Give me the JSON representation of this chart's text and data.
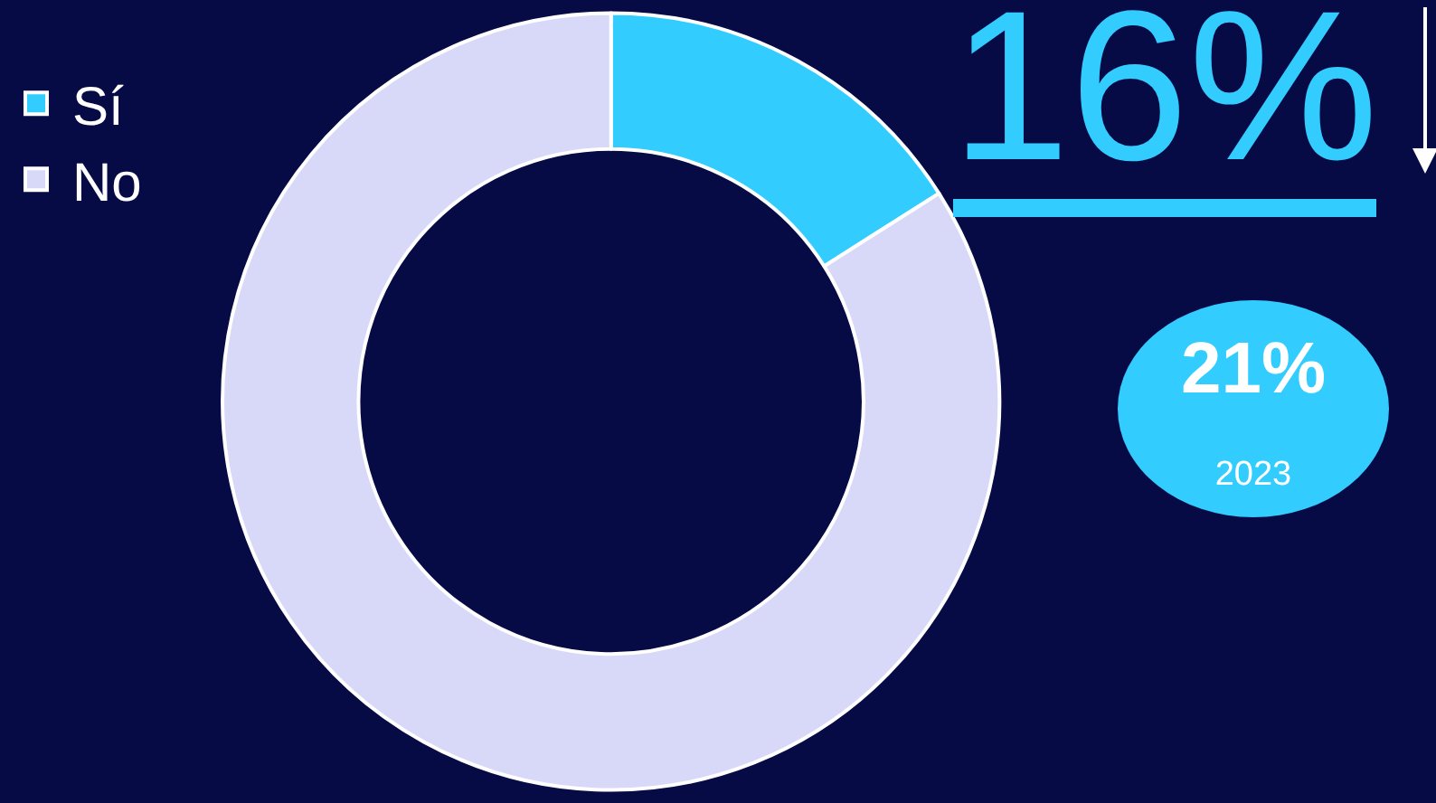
{
  "chart_data": {
    "type": "donut",
    "categories": [
      "Sí",
      "No"
    ],
    "values": [
      16,
      84
    ],
    "colors": [
      "#33ccff",
      "#d8d8f8"
    ],
    "legend": "top left",
    "annotations": [
      "16%",
      "21%",
      "2023"
    ]
  }
}
